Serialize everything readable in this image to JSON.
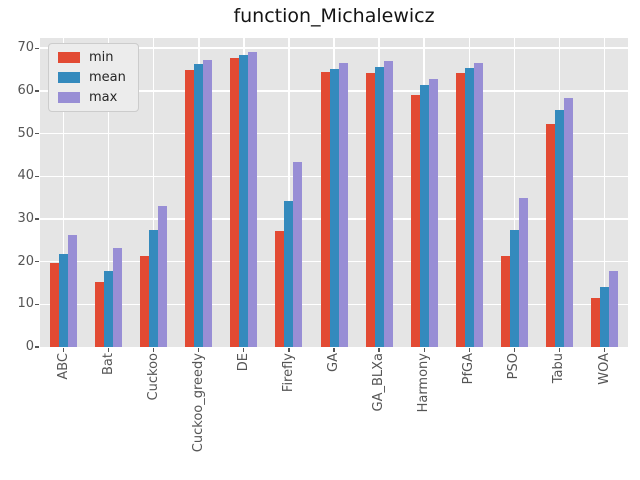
{
  "title": "function_Michalewicz",
  "chart_data": {
    "type": "bar",
    "title": "function_Michalewicz",
    "xlabel": "",
    "ylabel": "",
    "categories": [
      "ABC",
      "Bat",
      "Cuckoo",
      "Cuckoo_greedy",
      "DE",
      "Firefly",
      "GA",
      "GA_BLXa",
      "Harmony",
      "PfGA",
      "PSO",
      "Tabu",
      "WOA"
    ],
    "series": [
      {
        "name": "min",
        "color": "#e24a33",
        "values": [
          19.8,
          15.2,
          21.3,
          64.9,
          67.7,
          27.1,
          64.4,
          64.2,
          59.0,
          64.3,
          21.3,
          52.3,
          11.5
        ]
      },
      {
        "name": "mean",
        "color": "#348abd",
        "values": [
          21.9,
          17.9,
          27.5,
          66.3,
          68.4,
          34.3,
          65.2,
          65.6,
          61.4,
          65.4,
          27.4,
          55.5,
          14.0
        ]
      },
      {
        "name": "max",
        "color": "#988ed5",
        "values": [
          26.2,
          23.3,
          33.0,
          67.2,
          69.1,
          43.3,
          66.6,
          67.0,
          62.9,
          66.5,
          35.0,
          58.3,
          17.8
        ]
      }
    ],
    "yticks": [
      0,
      10,
      20,
      30,
      40,
      50,
      60,
      70
    ],
    "ylim": [
      0,
      72.4
    ],
    "grid": true,
    "legend_position": "upper left",
    "styles": {
      "axes_bg": "#e5e5e5",
      "grid_color": "#ffffff",
      "tick_color": "#555555",
      "title_color": "#141414",
      "figure_bg": "#ffffff"
    }
  }
}
